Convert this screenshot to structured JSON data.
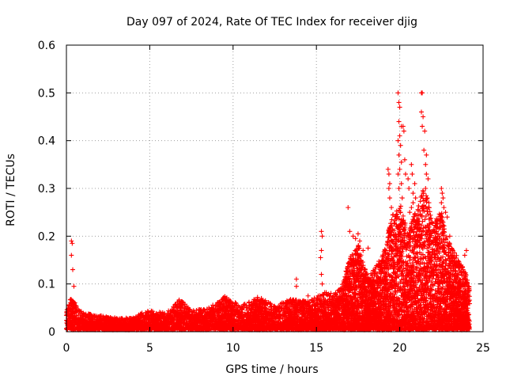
{
  "chart_data": {
    "type": "scatter",
    "title": "Day 097 of 2024, Rate Of TEC Index for receiver djig",
    "xlabel": "GPS time / hours",
    "ylabel": "ROTI / TECUs",
    "xlim": [
      0,
      25
    ],
    "ylim": [
      0,
      0.6
    ],
    "xticks": [
      0,
      5,
      10,
      15,
      20,
      25
    ],
    "yticks": [
      0,
      0.1,
      0.2,
      0.3,
      0.4,
      0.5,
      0.6
    ],
    "xtick_labels": [
      "0",
      "5",
      "10",
      "15",
      "20",
      "25"
    ],
    "ytick_labels": [
      "0",
      "0.1",
      "0.2",
      "0.3",
      "0.4",
      "0.5",
      "0.6"
    ],
    "grid": true,
    "marker": "+",
    "color": "#ff0000",
    "series": [
      {
        "name": "ROTI",
        "envelope": [
          [
            0.0,
            0.04
          ],
          [
            0.3,
            0.07
          ],
          [
            0.6,
            0.05
          ],
          [
            1.0,
            0.035
          ],
          [
            2.0,
            0.03
          ],
          [
            3.0,
            0.025
          ],
          [
            4.0,
            0.025
          ],
          [
            4.5,
            0.035
          ],
          [
            5.0,
            0.04
          ],
          [
            6.0,
            0.035
          ],
          [
            6.8,
            0.065
          ],
          [
            7.5,
            0.04
          ],
          [
            8.5,
            0.045
          ],
          [
            9.5,
            0.07
          ],
          [
            10.5,
            0.05
          ],
          [
            11.5,
            0.07
          ],
          [
            12.5,
            0.05
          ],
          [
            13.5,
            0.065
          ],
          [
            14.5,
            0.06
          ],
          [
            15.0,
            0.07
          ],
          [
            15.5,
            0.08
          ],
          [
            16.0,
            0.075
          ],
          [
            16.5,
            0.09
          ],
          [
            17.0,
            0.15
          ],
          [
            17.5,
            0.18
          ],
          [
            18.0,
            0.12
          ],
          [
            18.5,
            0.13
          ],
          [
            19.0,
            0.16
          ],
          [
            19.5,
            0.24
          ],
          [
            20.0,
            0.27
          ],
          [
            20.5,
            0.2
          ],
          [
            21.0,
            0.26
          ],
          [
            21.5,
            0.3
          ],
          [
            22.0,
            0.22
          ],
          [
            22.5,
            0.25
          ],
          [
            23.0,
            0.18
          ],
          [
            23.5,
            0.15
          ],
          [
            24.0,
            0.12
          ],
          [
            24.2,
            0.09
          ]
        ],
        "points": [
          [
            0.3,
            0.19
          ],
          [
            0.35,
            0.185
          ],
          [
            0.3,
            0.16
          ],
          [
            0.38,
            0.13
          ],
          [
            0.45,
            0.095
          ],
          [
            13.8,
            0.11
          ],
          [
            13.8,
            0.095
          ],
          [
            14.5,
            0.075
          ],
          [
            15.3,
            0.21
          ],
          [
            15.35,
            0.2
          ],
          [
            15.3,
            0.17
          ],
          [
            15.25,
            0.155
          ],
          [
            15.3,
            0.12
          ],
          [
            15.35,
            0.1
          ],
          [
            16.9,
            0.26
          ],
          [
            17.0,
            0.21
          ],
          [
            17.2,
            0.2
          ],
          [
            17.35,
            0.195
          ],
          [
            17.5,
            0.205
          ],
          [
            17.6,
            0.19
          ],
          [
            17.8,
            0.17
          ],
          [
            18.1,
            0.175
          ],
          [
            19.3,
            0.34
          ],
          [
            19.35,
            0.33
          ],
          [
            19.4,
            0.31
          ],
          [
            19.35,
            0.3
          ],
          [
            19.4,
            0.28
          ],
          [
            19.5,
            0.26
          ],
          [
            19.6,
            0.245
          ],
          [
            19.9,
            0.5
          ],
          [
            19.95,
            0.48
          ],
          [
            20.0,
            0.47
          ],
          [
            19.95,
            0.44
          ],
          [
            20.1,
            0.43
          ],
          [
            20.0,
            0.41
          ],
          [
            19.9,
            0.4
          ],
          [
            20.05,
            0.39
          ],
          [
            19.95,
            0.37
          ],
          [
            20.1,
            0.355
          ],
          [
            20.0,
            0.34
          ],
          [
            19.9,
            0.33
          ],
          [
            20.1,
            0.31
          ],
          [
            19.95,
            0.3
          ],
          [
            20.15,
            0.28
          ],
          [
            20.05,
            0.25
          ],
          [
            20.2,
            0.43
          ],
          [
            20.25,
            0.42
          ],
          [
            20.3,
            0.36
          ],
          [
            20.35,
            0.33
          ],
          [
            20.5,
            0.32
          ],
          [
            20.55,
            0.3
          ],
          [
            20.7,
            0.35
          ],
          [
            20.75,
            0.33
          ],
          [
            20.8,
            0.29
          ],
          [
            20.9,
            0.31
          ],
          [
            20.95,
            0.28
          ],
          [
            20.8,
            0.27
          ],
          [
            20.7,
            0.26
          ],
          [
            20.6,
            0.25
          ],
          [
            21.3,
            0.5
          ],
          [
            21.35,
            0.5
          ],
          [
            21.3,
            0.46
          ],
          [
            21.4,
            0.45
          ],
          [
            21.35,
            0.43
          ],
          [
            21.5,
            0.42
          ],
          [
            21.45,
            0.38
          ],
          [
            21.6,
            0.37
          ],
          [
            21.55,
            0.35
          ],
          [
            21.6,
            0.33
          ],
          [
            21.7,
            0.32
          ],
          [
            21.55,
            0.3
          ],
          [
            21.65,
            0.28
          ],
          [
            21.75,
            0.27
          ],
          [
            22.5,
            0.3
          ],
          [
            22.55,
            0.29
          ],
          [
            22.6,
            0.28
          ],
          [
            22.5,
            0.27
          ],
          [
            22.65,
            0.26
          ],
          [
            22.75,
            0.25
          ],
          [
            22.85,
            0.24
          ],
          [
            23.0,
            0.2
          ],
          [
            23.2,
            0.16
          ],
          [
            23.6,
            0.14
          ],
          [
            23.8,
            0.13
          ],
          [
            24.0,
            0.17
          ],
          [
            23.9,
            0.16
          ]
        ]
      }
    ]
  }
}
